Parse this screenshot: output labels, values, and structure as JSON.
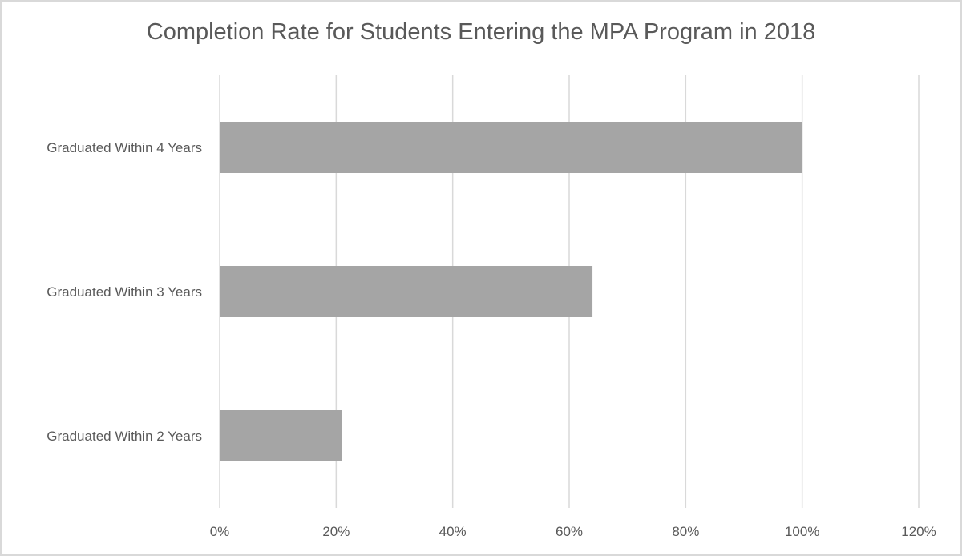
{
  "chart_data": {
    "type": "bar",
    "orientation": "horizontal",
    "title": "Completion Rate for Students Entering the MPA Program in 2018",
    "categories": [
      "Graduated Within 4 Years",
      "Graduated Within 3 Years",
      "Graduated Within 2 Years"
    ],
    "values": [
      1.0,
      0.64,
      0.21
    ],
    "xlim": [
      0,
      1.2
    ],
    "ticks": [
      "0%",
      "20%",
      "40%",
      "60%",
      "80%",
      "100%",
      "120%"
    ],
    "tick_values": [
      0,
      0.2,
      0.4,
      0.6,
      0.8,
      1.0,
      1.2
    ],
    "grid": true,
    "legend": "none",
    "bar_color": "#a5a5a5",
    "grid_color": "#d9d9d9",
    "text_color": "#595959"
  }
}
